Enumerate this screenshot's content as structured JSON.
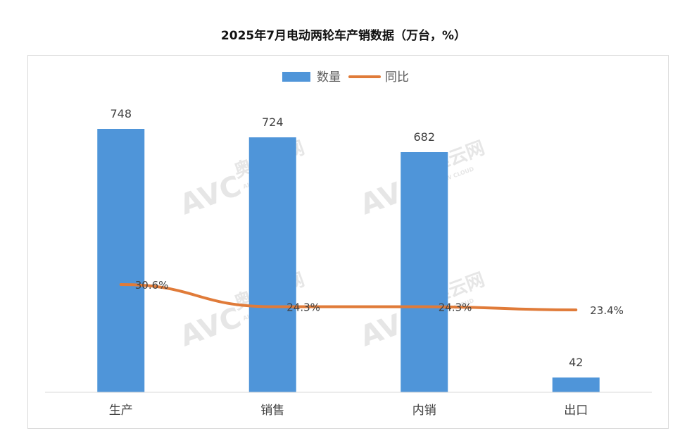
{
  "chart_data": {
    "type": "bar",
    "title": "2025年7月电动两轮车产销数据（万台，%）",
    "categories": [
      "生产",
      "销售",
      "内销",
      "出口"
    ],
    "series": [
      {
        "name": "数量",
        "type": "bar",
        "values": [
          748,
          724,
          682,
          42
        ],
        "color": "#4f95d9",
        "labels": [
          "748",
          "724",
          "682",
          "42"
        ]
      },
      {
        "name": "同比",
        "type": "line",
        "values": [
          30.6,
          24.3,
          24.3,
          23.4
        ],
        "color": "#e07b39",
        "labels": [
          "30.6%",
          "24.3%",
          "24.3%",
          "23.4%"
        ]
      }
    ],
    "ylim": [
      0,
      1000
    ],
    "line_ylim": [
      0,
      100
    ],
    "legend_position": "top-center",
    "grid": false
  },
  "watermark": {
    "text": "AVC 奥维云网",
    "subtext": "ALL VIEW CLOUD"
  }
}
